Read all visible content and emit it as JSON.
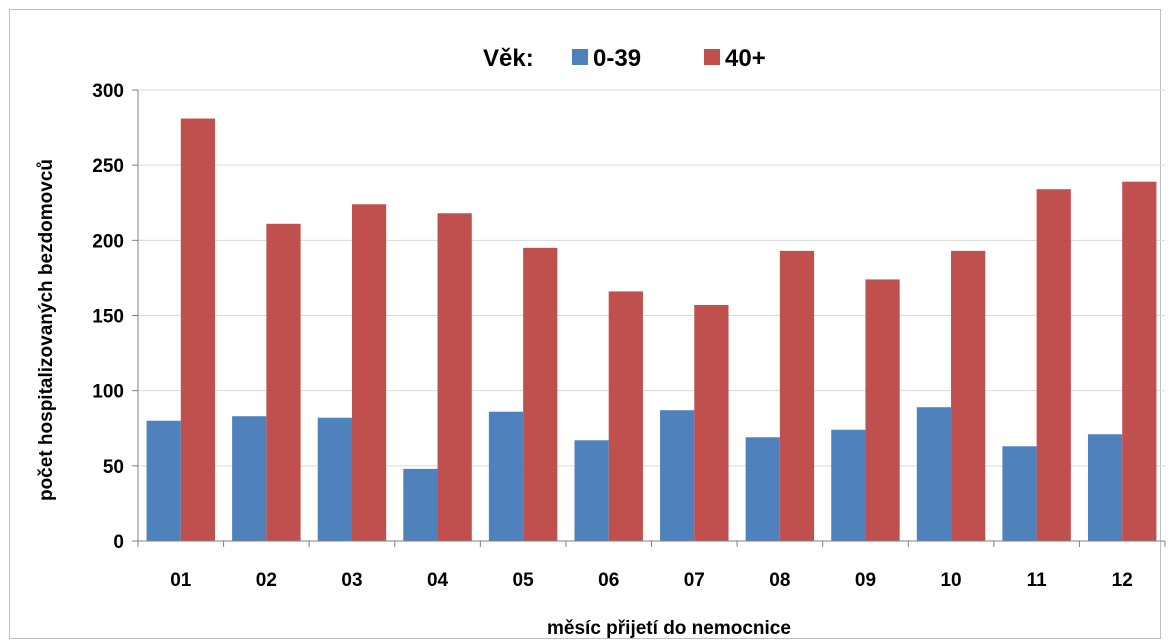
{
  "chart_data": {
    "type": "bar",
    "categories": [
      "01",
      "02",
      "03",
      "04",
      "05",
      "06",
      "07",
      "08",
      "09",
      "10",
      "11",
      "12"
    ],
    "series": [
      {
        "name": "0-39",
        "values": [
          80,
          83,
          82,
          48,
          86,
          67,
          87,
          69,
          74,
          89,
          63,
          71
        ],
        "color": "#4f81bd"
      },
      {
        "name": "40+",
        "values": [
          281,
          211,
          224,
          218,
          195,
          166,
          157,
          193,
          174,
          193,
          234,
          239
        ],
        "color": "#c0504d"
      }
    ],
    "legend_title": "Věk:",
    "legend_position": "top-center",
    "title": "",
    "xlabel": "měsíc přijetí do nemocnice",
    "ylabel": "počet hospitalizovaných bezdomovců",
    "ylim": [
      0,
      300
    ],
    "yticks": [
      0,
      50,
      100,
      150,
      200,
      250,
      300
    ],
    "grid": true,
    "gridline_color": "#d9d9d9"
  }
}
